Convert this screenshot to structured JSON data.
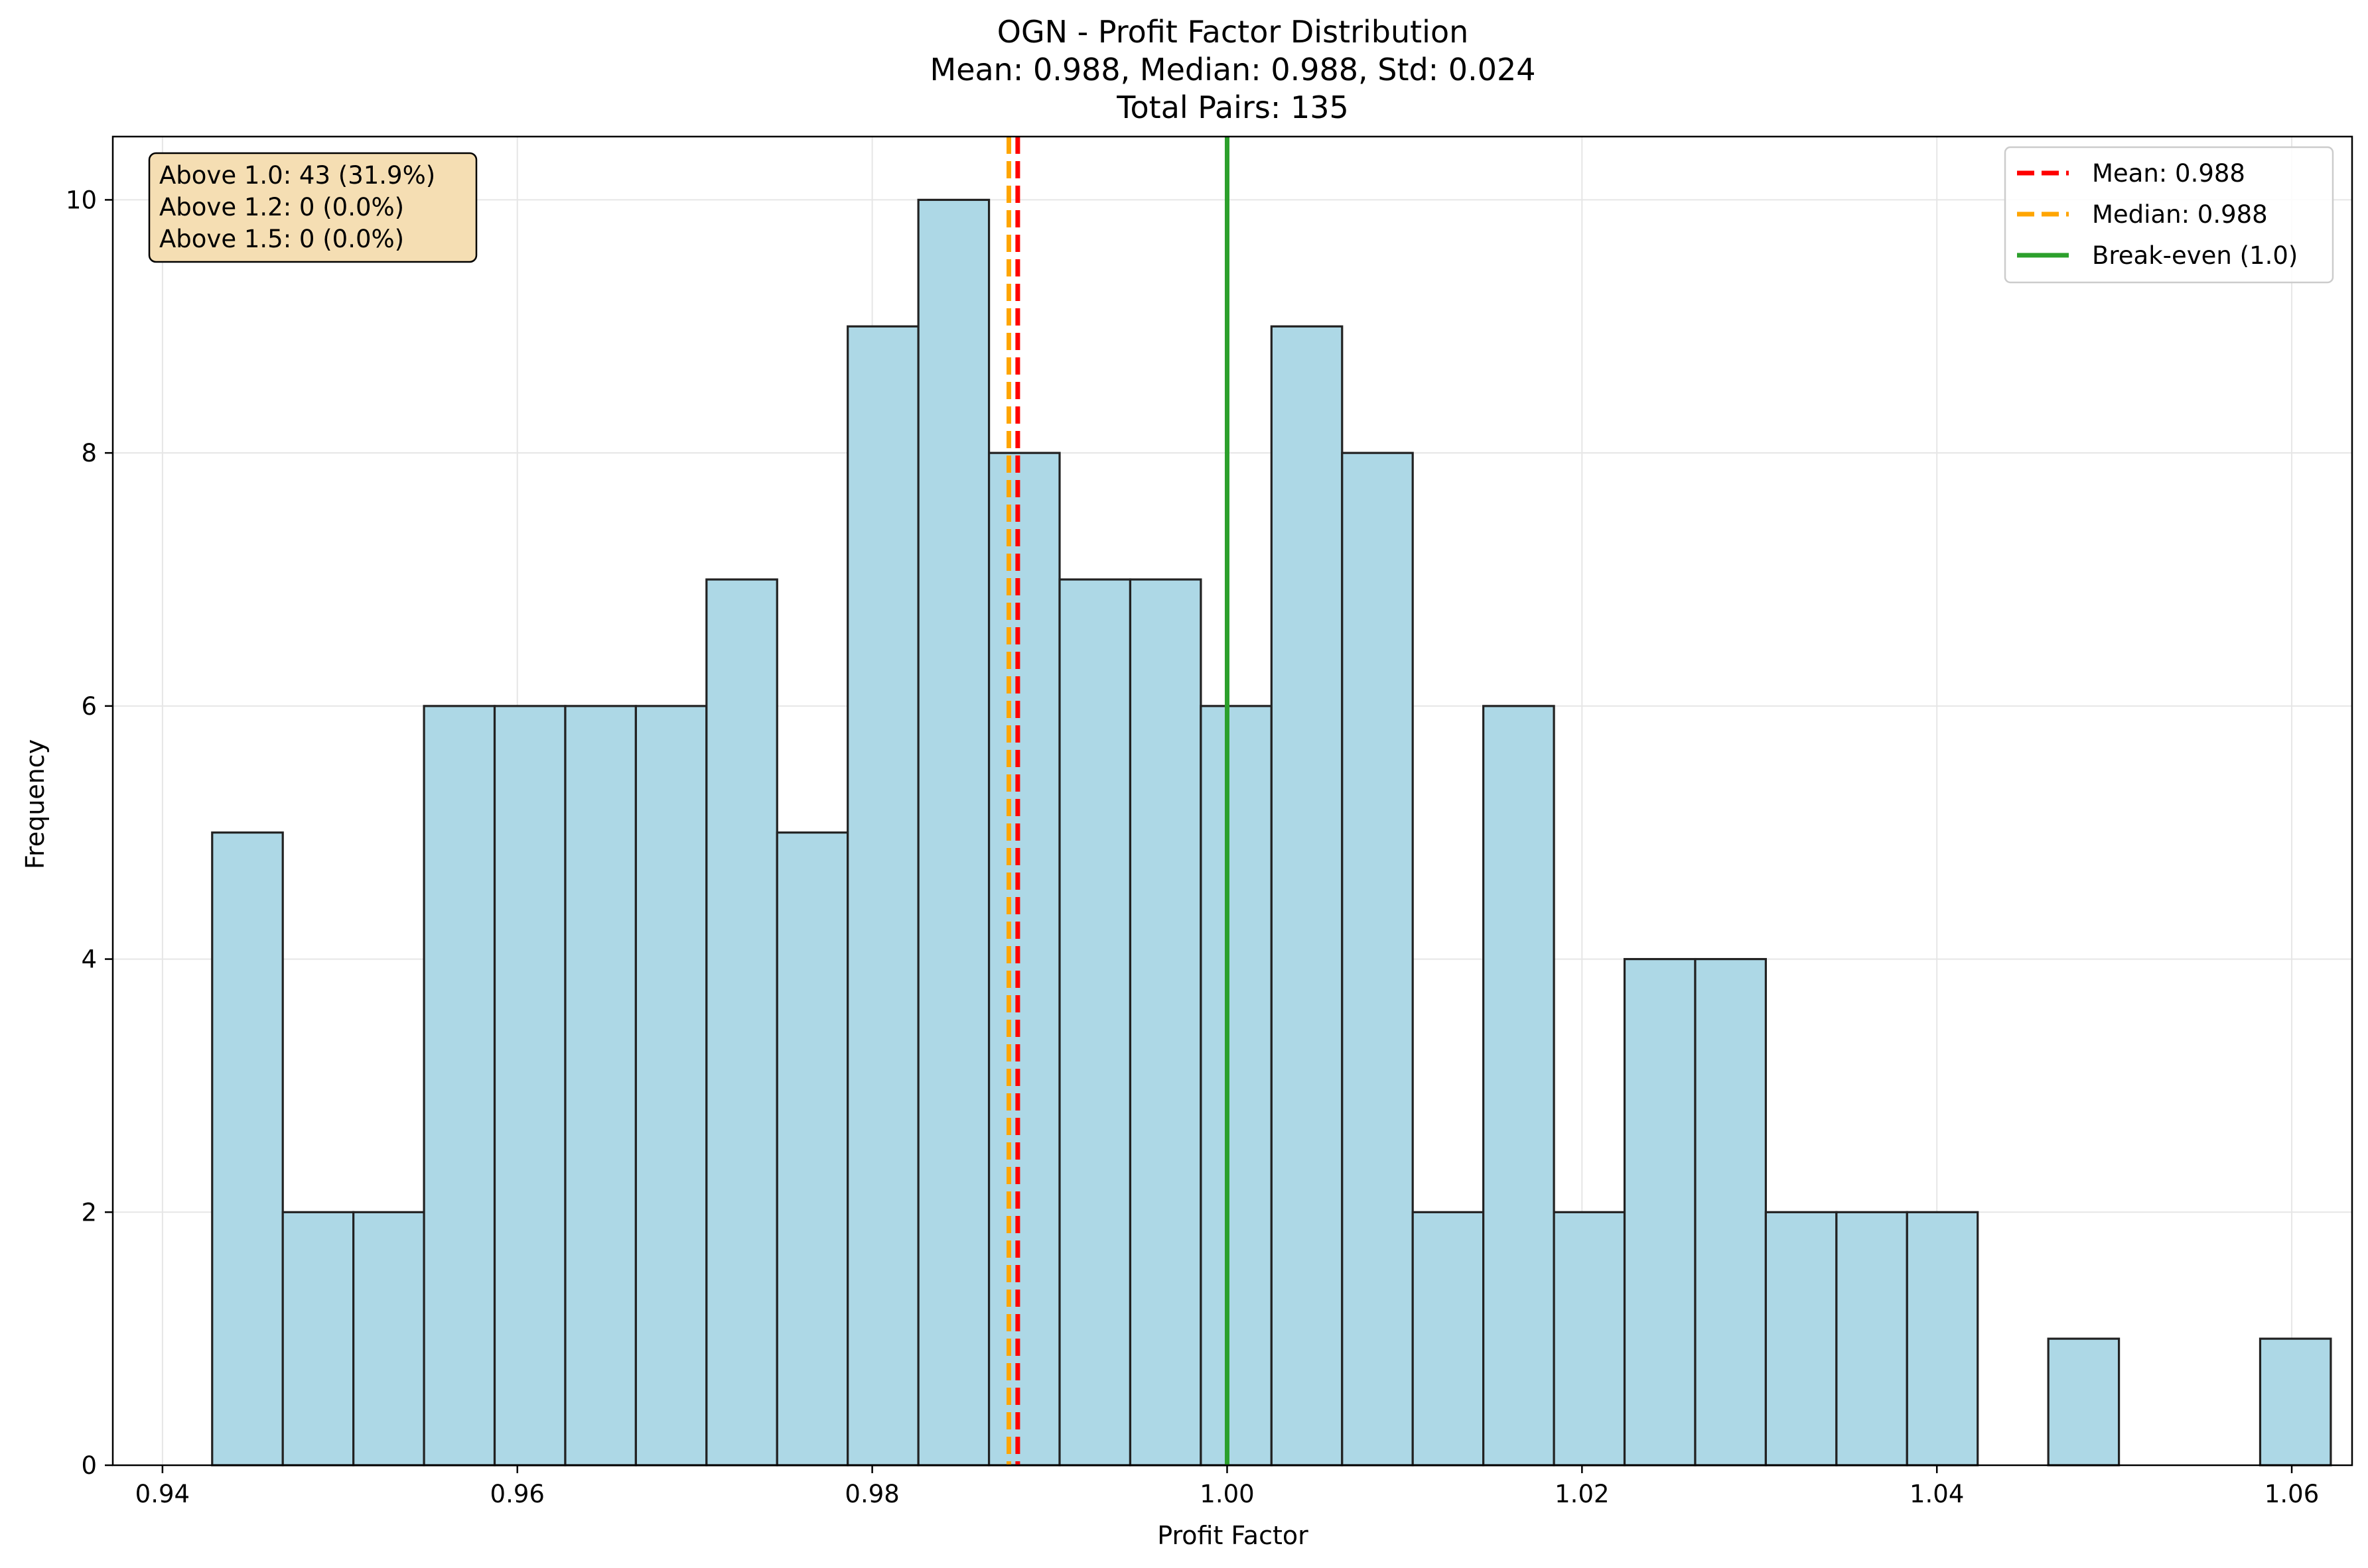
{
  "chart_data": {
    "type": "bar",
    "title_lines": [
      "OGN - Profit Factor Distribution",
      "Mean: 0.988, Median: 0.988, Std: 0.024",
      "Total Pairs: 135"
    ],
    "xlabel": "Profit Factor",
    "ylabel": "Frequency",
    "xlim": [
      0.9372,
      1.0634
    ],
    "ylim": [
      0,
      10.5
    ],
    "xticks": [
      0.94,
      0.96,
      0.98,
      1.0,
      1.02,
      1.04,
      1.06
    ],
    "xtick_labels": [
      "0.94",
      "0.96",
      "0.98",
      "1.00",
      "1.02",
      "1.04",
      "1.06"
    ],
    "yticks": [
      0,
      2,
      4,
      6,
      8,
      10
    ],
    "ytick_labels": [
      "0",
      "2",
      "4",
      "6",
      "8",
      "10"
    ],
    "grid": true,
    "bin_start": 0.9428,
    "bin_width": 0.00398,
    "values": [
      5,
      2,
      2,
      6,
      6,
      6,
      6,
      7,
      5,
      9,
      10,
      8,
      7,
      7,
      6,
      9,
      8,
      2,
      6,
      2,
      4,
      4,
      2,
      2,
      2,
      0,
      1,
      0,
      0,
      1
    ],
    "bar_color": "#add8e6",
    "bar_edge_color": "#222222",
    "reference_lines": [
      {
        "label": "Mean: 0.988",
        "x": 0.9882,
        "color": "#ff0000",
        "style": "dashed"
      },
      {
        "label": "Median: 0.988",
        "x": 0.9877,
        "color": "#ffa500",
        "style": "dashed"
      },
      {
        "label": "Break-even (1.0)",
        "x": 1.0,
        "color": "#2ca02c",
        "style": "solid"
      }
    ],
    "legend_position": "top-right",
    "stats_box": {
      "lines": [
        "Above 1.0: 43 (31.9%)",
        "Above 1.2: 0 (0.0%)",
        "Above 1.5: 0 (0.0%)"
      ],
      "background": "#f5deb3"
    }
  }
}
